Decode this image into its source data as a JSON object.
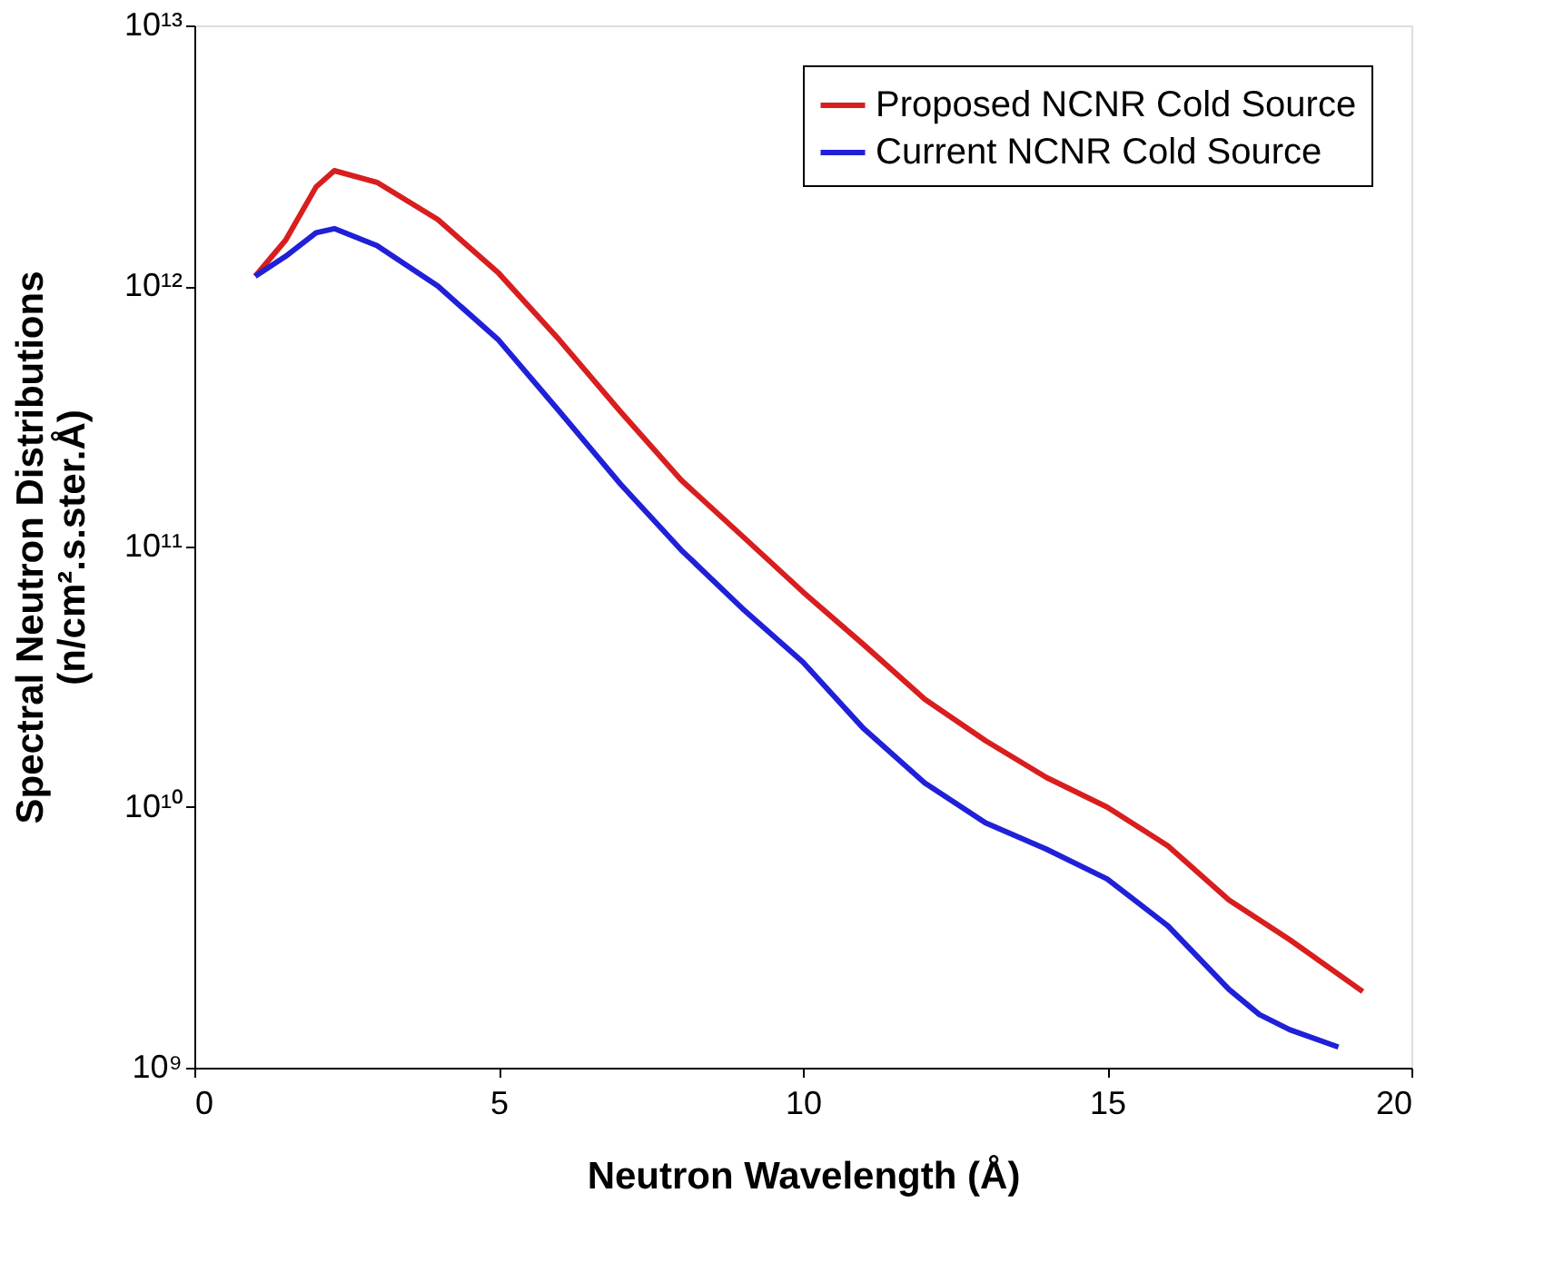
{
  "chart_data": {
    "type": "line",
    "xlabel": "Neutron Wavelength (Å)",
    "ylabel": "Spectral Neutron Distributions (n/cm².s.ster.Å)",
    "log": "y",
    "grid": false,
    "legend": "top right",
    "marker": "none",
    "line_style": "solid",
    "xlim": [
      0,
      20
    ],
    "xticks": [
      0,
      5,
      10,
      15,
      20
    ],
    "ylim": [
      1000000000.0,
      10000000000000.0
    ],
    "yticks": [
      {
        "value": 1000000000.0,
        "label": "10⁹"
      },
      {
        "value": 10000000000.0,
        "label": "10¹⁰"
      },
      {
        "value": 100000000000.0,
        "label": "10¹¹"
      },
      {
        "value": 1000000000000.0,
        "label": "10¹²"
      },
      {
        "value": 10000000000000.0,
        "label": "10¹³"
      }
    ],
    "series": [
      {
        "name": "Proposed NCNR Cold Source",
        "color": "#d81e1e",
        "x": [
          1,
          1.5,
          2,
          2.3,
          3,
          4,
          5,
          6,
          7,
          8,
          9,
          10,
          11,
          12,
          13,
          14,
          15,
          16,
          17,
          18,
          19.2
        ],
        "values": [
          1090000000000.0,
          1500000000000.0,
          2400000000000.0,
          2770000000000.0,
          2500000000000.0,
          1800000000000.0,
          1120000000000.0,
          620000000000.0,
          330000000000.0,
          180000000000.0,
          110000000000.0,
          67000000000.0,
          42000000000.0,
          26000000000.0,
          18000000000.0,
          13000000000.0,
          10000000000.0,
          7100000000.0,
          4400000000.0,
          3100000000.0,
          1960000000.0
        ]
      },
      {
        "name": "Current NCNR Cold Source",
        "color": "#2020d8",
        "x": [
          1,
          1.5,
          2,
          2.3,
          3,
          4,
          5,
          6,
          7,
          8,
          9,
          10,
          11,
          12,
          13,
          14,
          15,
          16,
          17,
          17.5,
          18,
          18.8
        ],
        "values": [
          1090000000000.0,
          1300000000000.0,
          1600000000000.0,
          1660000000000.0,
          1430000000000.0,
          1000000000000.0,
          620000000000.0,
          330000000000.0,
          174000000000.0,
          97000000000.0,
          58000000000.0,
          36000000000.0,
          20000000000.0,
          12400000000.0,
          8700000000.0,
          6900000000.0,
          5300000000.0,
          3500000000.0,
          2000000000.0,
          1600000000.0,
          1400000000.0,
          1200000000.0
        ]
      }
    ]
  }
}
